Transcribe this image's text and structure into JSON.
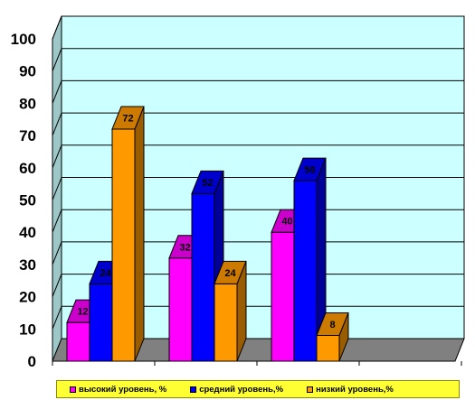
{
  "chart_data": {
    "type": "bar",
    "categories": [
      "",
      "",
      ""
    ],
    "series": [
      {
        "name": "высокий уровень, %",
        "color": "#ff00ff",
        "values": [
          12,
          32,
          40
        ]
      },
      {
        "name": "средний уровень,%",
        "color": "#0000ff",
        "values": [
          24,
          52,
          56
        ]
      },
      {
        "name": "низкий уровень,%",
        "color": "#ff9900",
        "values": [
          72,
          24,
          8
        ]
      }
    ],
    "yticks": [
      "0",
      "10",
      "20",
      "30",
      "40",
      "50",
      "60",
      "70",
      "80",
      "90",
      "100"
    ],
    "ylim": [
      0,
      100
    ],
    "title": "",
    "xlabel": "",
    "ylabel": "",
    "grid": true,
    "legend_position": "bottom",
    "wall_color": "#ccffff",
    "floor_color": "#808080",
    "legend_bg": "#ffff33"
  }
}
